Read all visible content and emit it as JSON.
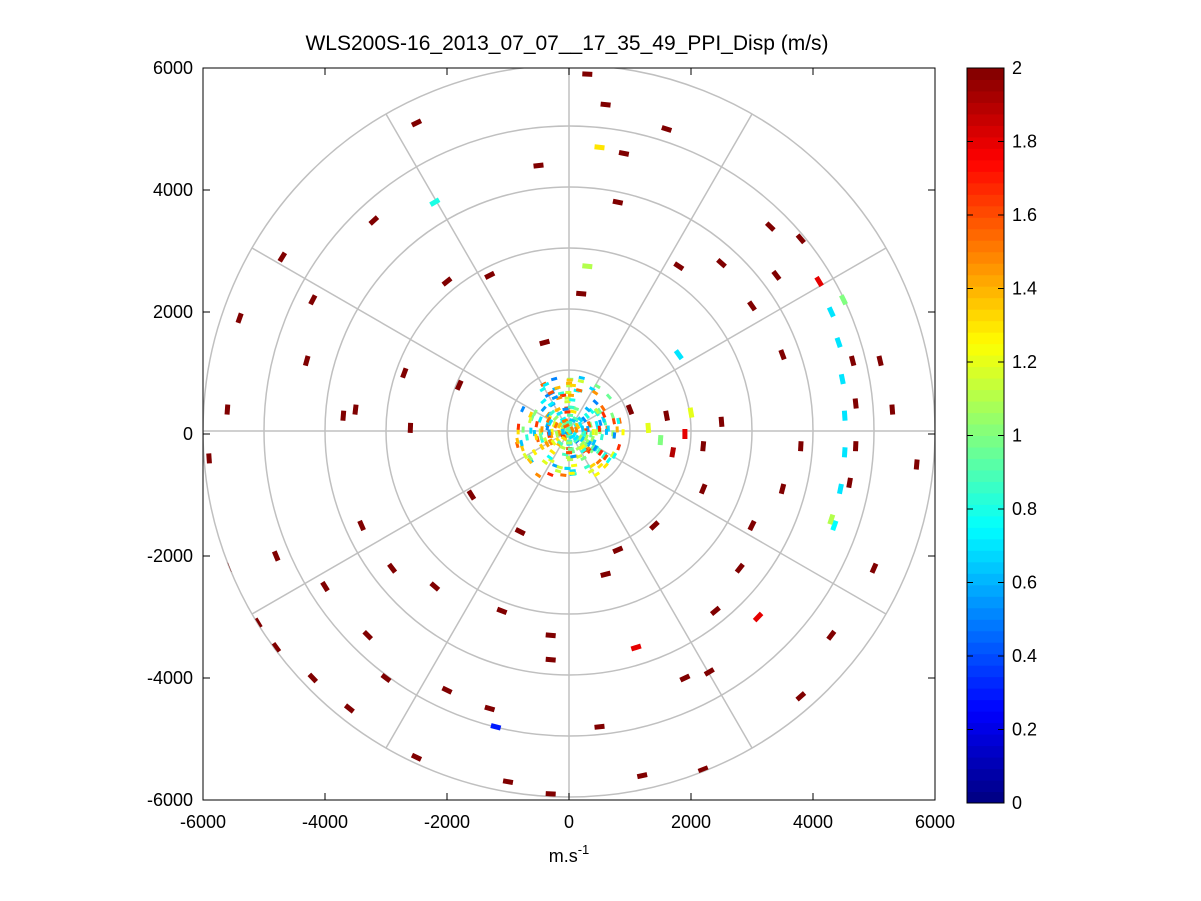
{
  "chart_data": {
    "type": "polar_ppi_scatter",
    "title": "WLS200S-16_2013_07_07__17_35_49_PPI_Disp (m/s)",
    "xlabel_base": "m.s",
    "xlabel_exponent": "-1",
    "ylabel": "",
    "xlim": [
      -6000,
      6000
    ],
    "ylim": [
      -6000,
      6000
    ],
    "x_ticks": [
      "-6000",
      "-4000",
      "-2000",
      "0",
      "2000",
      "4000",
      "6000"
    ],
    "y_ticks": [
      "6000",
      "4000",
      "2000",
      "0",
      "-2000",
      "-4000",
      "-6000"
    ],
    "range_rings": [
      1000,
      2000,
      3000,
      4000,
      5000,
      6000
    ],
    "azimuth_spokes_deg": [
      0,
      30,
      60,
      90,
      120,
      150,
      180,
      210,
      240,
      270,
      300,
      330
    ],
    "colorbar": {
      "colormap": "jet",
      "min": 0,
      "max": 2,
      "ticks": [
        "2",
        "1.8",
        "1.6",
        "1.4",
        "1.2",
        "1",
        "0.8",
        "0.6",
        "0.4",
        "0.2",
        "0"
      ]
    },
    "points": [
      {
        "x": 4300,
        "y": 2000,
        "v": 0.7
      },
      {
        "x": 4420,
        "y": 1500,
        "v": 0.7
      },
      {
        "x": 4480,
        "y": 900,
        "v": 0.7
      },
      {
        "x": 4520,
        "y": 300,
        "v": 0.7
      },
      {
        "x": 4520,
        "y": -300,
        "v": 0.7
      },
      {
        "x": 4450,
        "y": -900,
        "v": 0.7
      },
      {
        "x": 4350,
        "y": -1500,
        "v": 0.75
      },
      {
        "x": 4500,
        "y": 2200,
        "v": 1.0
      },
      {
        "x": 4650,
        "y": 1200,
        "v": 2.0
      },
      {
        "x": 4700,
        "y": 500,
        "v": 2.0
      },
      {
        "x": 4700,
        "y": -200,
        "v": 2.0
      },
      {
        "x": 4600,
        "y": -800,
        "v": 2.0
      },
      {
        "x": 4100,
        "y": 2500,
        "v": 1.8
      },
      {
        "x": 4300,
        "y": -1400,
        "v": 1.1
      },
      {
        "x": 1600,
        "y": 300,
        "v": 2.0
      },
      {
        "x": 1900,
        "y": 0,
        "v": 1.8
      },
      {
        "x": 1300,
        "y": 100,
        "v": 1.2
      },
      {
        "x": 2200,
        "y": -200,
        "v": 2.0
      },
      {
        "x": 1700,
        "y": -300,
        "v": 1.9
      },
      {
        "x": 2500,
        "y": 200,
        "v": 2.0
      },
      {
        "x": 1500,
        "y": -100,
        "v": 1.0
      },
      {
        "x": 2000,
        "y": 350,
        "v": 1.2
      },
      {
        "x": 1000,
        "y": 400,
        "v": 2.0
      },
      {
        "x": 1800,
        "y": 1300,
        "v": 0.7
      },
      {
        "x": 500,
        "y": 4700,
        "v": 1.3
      },
      {
        "x": -2200,
        "y": 3800,
        "v": 0.8
      },
      {
        "x": 3100,
        "y": -3000,
        "v": 1.8
      },
      {
        "x": 1100,
        "y": -3500,
        "v": 1.8
      },
      {
        "x": -1200,
        "y": -4800,
        "v": 0.3
      },
      {
        "x": 300,
        "y": 2750,
        "v": 1.1
      },
      {
        "x": 300,
        "y": 5900,
        "v": 2.0
      },
      {
        "x": 600,
        "y": 5400,
        "v": 2.0
      },
      {
        "x": 1600,
        "y": 5000,
        "v": 2.0
      },
      {
        "x": 900,
        "y": 4600,
        "v": 2.0
      },
      {
        "x": -500,
        "y": 4400,
        "v": 2.0
      },
      {
        "x": -2500,
        "y": 5100,
        "v": 2.0
      },
      {
        "x": -3200,
        "y": 3500,
        "v": 2.0
      },
      {
        "x": -4700,
        "y": 2900,
        "v": 2.0
      },
      {
        "x": -5400,
        "y": 1900,
        "v": 2.0
      },
      {
        "x": -4200,
        "y": 2200,
        "v": 2.0
      },
      {
        "x": -4300,
        "y": 1200,
        "v": 2.0
      },
      {
        "x": -5600,
        "y": 400,
        "v": 2.0
      },
      {
        "x": -5900,
        "y": -400,
        "v": 2.0
      },
      {
        "x": -5600,
        "y": -2200,
        "v": 2.0
      },
      {
        "x": -5100,
        "y": -3100,
        "v": 2.0
      },
      {
        "x": -4800,
        "y": -3500,
        "v": 2.0
      },
      {
        "x": -4200,
        "y": -4000,
        "v": 2.0
      },
      {
        "x": -3600,
        "y": -4500,
        "v": 2.0
      },
      {
        "x": -2500,
        "y": -5300,
        "v": 2.0
      },
      {
        "x": -1000,
        "y": -5700,
        "v": 2.0
      },
      {
        "x": -300,
        "y": -5900,
        "v": 2.0
      },
      {
        "x": 1200,
        "y": -5600,
        "v": 2.0
      },
      {
        "x": 2200,
        "y": -5500,
        "v": 2.0
      },
      {
        "x": 3800,
        "y": -4300,
        "v": 2.0
      },
      {
        "x": 4300,
        "y": -3300,
        "v": 2.0
      },
      {
        "x": 5000,
        "y": -2200,
        "v": 2.0
      },
      {
        "x": 5700,
        "y": -500,
        "v": 2.0
      },
      {
        "x": 5300,
        "y": 400,
        "v": 2.0
      },
      {
        "x": 5100,
        "y": 1200,
        "v": 2.0
      },
      {
        "x": 3400,
        "y": 2600,
        "v": 2.0
      },
      {
        "x": 3800,
        "y": 3200,
        "v": 2.0
      },
      {
        "x": 2500,
        "y": 2800,
        "v": 2.0
      },
      {
        "x": 1800,
        "y": 2750,
        "v": 2.0
      },
      {
        "x": 3000,
        "y": 2100,
        "v": 2.0
      },
      {
        "x": 3500,
        "y": 1300,
        "v": 2.0
      },
      {
        "x": 3800,
        "y": -200,
        "v": 2.0
      },
      {
        "x": 3500,
        "y": -900,
        "v": 2.0
      },
      {
        "x": 3000,
        "y": -1500,
        "v": 2.0
      },
      {
        "x": 2800,
        "y": -2200,
        "v": 2.0
      },
      {
        "x": 2400,
        "y": -2900,
        "v": 2.0
      },
      {
        "x": 2300,
        "y": -3900,
        "v": 2.0
      },
      {
        "x": 1900,
        "y": -4000,
        "v": 2.0
      },
      {
        "x": 500,
        "y": -4800,
        "v": 2.0
      },
      {
        "x": -1300,
        "y": -4500,
        "v": 2.0
      },
      {
        "x": -2000,
        "y": -4200,
        "v": 2.0
      },
      {
        "x": -3000,
        "y": -4000,
        "v": 2.0
      },
      {
        "x": -3300,
        "y": -3300,
        "v": 2.0
      },
      {
        "x": -4000,
        "y": -2500,
        "v": 2.0
      },
      {
        "x": -2900,
        "y": -2200,
        "v": 2.0
      },
      {
        "x": -2200,
        "y": -2500,
        "v": 2.0
      },
      {
        "x": -1100,
        "y": -2900,
        "v": 2.0
      },
      {
        "x": -300,
        "y": -3300,
        "v": 2.0
      },
      {
        "x": 600,
        "y": -2300,
        "v": 2.0
      },
      {
        "x": -3700,
        "y": 300,
        "v": 2.0
      },
      {
        "x": -2700,
        "y": 1000,
        "v": 2.0
      },
      {
        "x": -3500,
        "y": 400,
        "v": 2.0
      },
      {
        "x": -2000,
        "y": 2500,
        "v": 2.0
      },
      {
        "x": -1300,
        "y": 2600,
        "v": 2.0
      },
      {
        "x": -400,
        "y": 1500,
        "v": 2.0
      },
      {
        "x": -1600,
        "y": -1000,
        "v": 2.0
      },
      {
        "x": -800,
        "y": -1600,
        "v": 2.0
      },
      {
        "x": 800,
        "y": -1900,
        "v": 2.0
      },
      {
        "x": 1400,
        "y": -1500,
        "v": 2.0
      },
      {
        "x": 2200,
        "y": -900,
        "v": 2.0
      },
      {
        "x": -2600,
        "y": 100,
        "v": 2.0
      },
      {
        "x": -1800,
        "y": 800,
        "v": 2.0
      },
      {
        "x": 200,
        "y": 2300,
        "v": 2.0
      },
      {
        "x": 800,
        "y": 3800,
        "v": 2.0
      },
      {
        "x": -3400,
        "y": -1500,
        "v": 2.0
      },
      {
        "x": -4800,
        "y": -2000,
        "v": 2.0
      },
      {
        "x": 3300,
        "y": 3400,
        "v": 2.0
      },
      {
        "x": -300,
        "y": -3700,
        "v": 2.0
      }
    ]
  }
}
